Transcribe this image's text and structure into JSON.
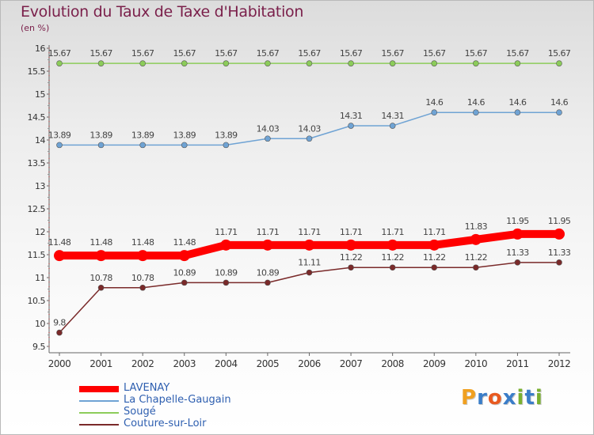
{
  "title": "Evolution du Taux de Taxe d'Habitation",
  "subtitle": "(en %)",
  "logo": {
    "text": "Proxiti",
    "letters": [
      "P",
      "r",
      "o",
      "x",
      "i",
      "t",
      "i"
    ],
    "colors": [
      "#f0a020",
      "#3a7dc8",
      "#e85a20",
      "#3a7dc8",
      "#7ab030",
      "#3a7dc8",
      "#7ab030"
    ]
  },
  "chart_data": {
    "type": "line",
    "x": [
      "2000",
      "2001",
      "2002",
      "2003",
      "2004",
      "2005",
      "2006",
      "2007",
      "2008",
      "2009",
      "2010",
      "2011",
      "2012"
    ],
    "ylim": [
      9.5,
      16
    ],
    "yticks": [
      "9.5",
      "10",
      "10.5",
      "11",
      "11.5",
      "12",
      "12.5",
      "13",
      "13.5",
      "14",
      "14.5",
      "15",
      "15.5",
      "16"
    ],
    "grid": false,
    "legend": "bottom-left",
    "series": [
      {
        "name": "LAVENAY",
        "color": "#ff0000",
        "width": 10,
        "marker": 7,
        "values": [
          11.48,
          11.48,
          11.48,
          11.48,
          11.71,
          11.71,
          11.71,
          11.71,
          11.71,
          11.71,
          11.83,
          11.95,
          11.95
        ],
        "labels": [
          "11.48",
          "11.48",
          "11.48",
          "11.48",
          "11.71",
          "11.71",
          "11.71",
          "11.71",
          "11.71",
          "11.71",
          "11.83",
          "11.95",
          "11.95"
        ]
      },
      {
        "name": "La Chapelle-Gaugain",
        "color": "#6fa3d4",
        "width": 1.5,
        "marker": 3.5,
        "values": [
          13.89,
          13.89,
          13.89,
          13.89,
          13.89,
          14.03,
          14.03,
          14.31,
          14.31,
          14.6,
          14.6,
          14.6,
          14.6
        ],
        "labels": [
          "13.89",
          "13.89",
          "13.89",
          "13.89",
          "13.89",
          "14.03",
          "14.03",
          "14.31",
          "14.31",
          "14.6",
          "14.6",
          "14.6",
          "14.6"
        ]
      },
      {
        "name": "Sougé",
        "color": "#8ccc5a",
        "width": 1.5,
        "marker": 3.5,
        "values": [
          15.67,
          15.67,
          15.67,
          15.67,
          15.67,
          15.67,
          15.67,
          15.67,
          15.67,
          15.67,
          15.67,
          15.67,
          15.67
        ],
        "labels": [
          "15.67",
          "15.67",
          "15.67",
          "15.67",
          "15.67",
          "15.67",
          "15.67",
          "15.67",
          "15.67",
          "15.67",
          "15.67",
          "15.67",
          "15.67"
        ]
      },
      {
        "name": "Couture-sur-Loir",
        "color": "#7a2a2a",
        "width": 1.5,
        "marker": 3.5,
        "values": [
          9.8,
          10.78,
          10.78,
          10.89,
          10.89,
          10.89,
          11.11,
          11.22,
          11.22,
          11.22,
          11.22,
          11.33,
          11.33
        ],
        "labels": [
          "9.8",
          "10.78",
          "10.78",
          "10.89",
          "10.89",
          "10.89",
          "11.11",
          "11.22",
          "11.22",
          "11.22",
          "11.22",
          "11.33",
          "11.33"
        ]
      }
    ]
  }
}
